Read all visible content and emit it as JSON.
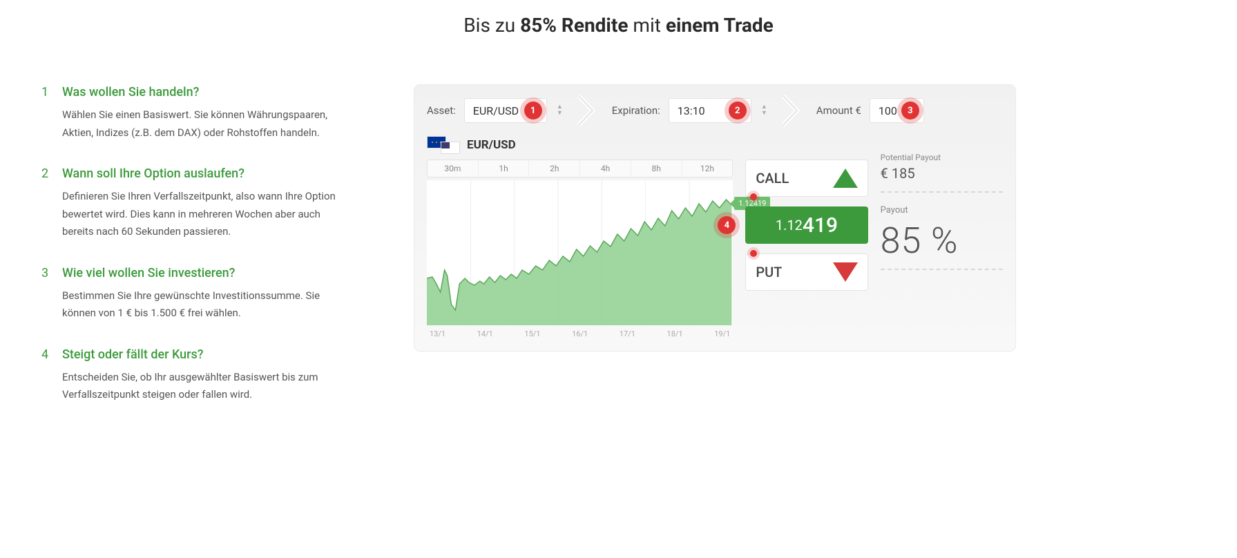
{
  "headline_pre": "Bis zu ",
  "headline_bold1": "85% Rendite",
  "headline_mid": " mit ",
  "headline_bold2": "einem Trade",
  "steps": [
    {
      "n": "1",
      "title": "Was wollen Sie handeln?",
      "desc": "Wählen Sie einen Basiswert. Sie können Währungspaaren, Aktien, Indizes (z.B. dem DAX) oder Rohstoffen handeln."
    },
    {
      "n": "2",
      "title": "Wann soll Ihre Option auslaufen?",
      "desc": "Definieren Sie Ihren Verfallszeitpunkt, also wann Ihre Option bewertet wird. Dies kann in mehreren Wochen aber auch bereits nach 60 Sekunden passieren."
    },
    {
      "n": "3",
      "title": "Wie viel wollen Sie investieren?",
      "desc": "Bestimmen Sie Ihre gewünschte Investitionssumme. Sie können von 1 € bis 1.500 € frei wählen."
    },
    {
      "n": "4",
      "title": "Steigt oder fällt der Kurs?",
      "desc": "Entscheiden Sie, ob Ihr ausgewählter Basiswert bis zum Verfallszeitpunkt steigen oder fallen wird."
    }
  ],
  "topbar": {
    "asset_label": "Asset:",
    "asset_value": "EUR/USD",
    "expiration_label": "Expiration:",
    "expiration_value": "13:10",
    "amount_label": "Amount €",
    "amount_value": "100",
    "badge1": "1",
    "badge2": "2",
    "badge3": "3"
  },
  "pair_name": "EUR/USD",
  "timeframes": [
    "30m",
    "1h",
    "2h",
    "4h",
    "8h",
    "12h"
  ],
  "chart": {
    "fill": "#8fcf8f",
    "stroke": "#5aa85a",
    "grid": "#eeeeee",
    "price_tag": "1.12419",
    "points": [
      [
        0,
        142
      ],
      [
        8,
        140
      ],
      [
        14,
        150
      ],
      [
        20,
        162
      ],
      [
        26,
        130
      ],
      [
        30,
        138
      ],
      [
        36,
        180
      ],
      [
        42,
        188
      ],
      [
        48,
        150
      ],
      [
        56,
        142
      ],
      [
        62,
        148
      ],
      [
        70,
        152
      ],
      [
        78,
        146
      ],
      [
        84,
        150
      ],
      [
        92,
        140
      ],
      [
        100,
        148
      ],
      [
        108,
        138
      ],
      [
        116,
        144
      ],
      [
        124,
        136
      ],
      [
        132,
        142
      ],
      [
        140,
        130
      ],
      [
        150,
        136
      ],
      [
        160,
        124
      ],
      [
        170,
        130
      ],
      [
        180,
        116
      ],
      [
        190,
        124
      ],
      [
        200,
        110
      ],
      [
        210,
        118
      ],
      [
        220,
        100
      ],
      [
        230,
        110
      ],
      [
        240,
        95
      ],
      [
        250,
        104
      ],
      [
        260,
        88
      ],
      [
        270,
        96
      ],
      [
        280,
        78
      ],
      [
        290,
        88
      ],
      [
        300,
        70
      ],
      [
        310,
        80
      ],
      [
        320,
        60
      ],
      [
        330,
        72
      ],
      [
        340,
        55
      ],
      [
        350,
        66
      ],
      [
        360,
        44
      ],
      [
        370,
        56
      ],
      [
        380,
        40
      ],
      [
        390,
        52
      ],
      [
        400,
        34
      ],
      [
        410,
        46
      ],
      [
        420,
        30
      ],
      [
        430,
        40
      ],
      [
        440,
        28
      ],
      [
        448,
        36
      ]
    ]
  },
  "xaxis": [
    "13/1",
    "14/1",
    "15/1",
    "16/1",
    "17/1",
    "18/1",
    "19/1"
  ],
  "actions": {
    "call": "CALL",
    "put": "PUT",
    "price_pre": "1.12",
    "price_big": "419",
    "badge4": "4"
  },
  "payout": {
    "pp_label": "Potential Payout",
    "pp_value": "€ 185",
    "po_label": "Payout",
    "po_value": "85 %"
  },
  "colors": {
    "accent_green": "#3c9a3c",
    "accent_red": "#e03333",
    "tri_red": "#d63a3a",
    "panel_bg": "#f1f1f1"
  }
}
